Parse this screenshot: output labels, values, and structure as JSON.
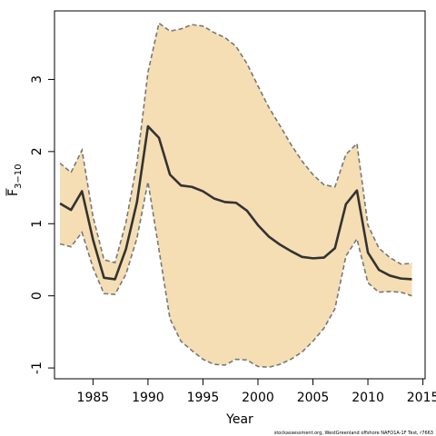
{
  "chart_data": {
    "type": "line",
    "title": "",
    "xlabel": "Year",
    "ylabel_main": "F",
    "ylabel_sub": "3−10",
    "xlim": [
      1981.5,
      2015.2
    ],
    "ylim": [
      -1.15,
      3.95
    ],
    "x_ticks": [
      1985,
      1990,
      1995,
      2000,
      2005,
      2010,
      2015
    ],
    "y_ticks": [
      -1,
      0,
      1,
      2,
      3
    ],
    "grid": false,
    "colors": {
      "band": "#f5deb3",
      "band_edge": "#777777",
      "line": "#333333"
    },
    "x": [
      1982,
      1983,
      1984,
      1985,
      1986,
      1987,
      1988,
      1989,
      1990,
      1991,
      1992,
      1993,
      1994,
      1995,
      1996,
      1997,
      1998,
      1999,
      2000,
      2001,
      2002,
      2003,
      2004,
      2005,
      2006,
      2007,
      2008,
      2009,
      2010,
      2011,
      2012,
      2013,
      2014
    ],
    "series": [
      {
        "role": "estimate",
        "values": [
          1.28,
          1.19,
          1.45,
          0.78,
          0.25,
          0.23,
          0.65,
          1.3,
          2.35,
          2.19,
          1.68,
          1.53,
          1.51,
          1.45,
          1.35,
          1.3,
          1.29,
          1.18,
          0.98,
          0.82,
          0.71,
          0.62,
          0.54,
          0.52,
          0.53,
          0.66,
          1.27,
          1.46,
          0.6,
          0.36,
          0.28,
          0.24,
          0.23
        ]
      },
      {
        "role": "upper",
        "values": [
          1.84,
          1.71,
          2.02,
          1.1,
          0.5,
          0.46,
          1.02,
          1.84,
          3.1,
          3.78,
          3.67,
          3.7,
          3.76,
          3.74,
          3.65,
          3.58,
          3.46,
          3.22,
          2.91,
          2.61,
          2.36,
          2.1,
          1.87,
          1.68,
          1.54,
          1.51,
          1.96,
          2.11,
          0.98,
          0.66,
          0.53,
          0.44,
          0.45
        ]
      },
      {
        "role": "lower",
        "values": [
          0.72,
          0.68,
          0.88,
          0.39,
          0.03,
          0.02,
          0.3,
          0.8,
          1.58,
          0.64,
          -0.32,
          -0.63,
          -0.76,
          -0.88,
          -0.95,
          -0.96,
          -0.88,
          -0.89,
          -0.98,
          -0.99,
          -0.95,
          -0.88,
          -0.78,
          -0.63,
          -0.45,
          -0.18,
          0.55,
          0.79,
          0.18,
          0.05,
          0.06,
          0.05,
          0.0
        ]
      }
    ]
  },
  "footnote": "stockassessment.org, WestGreenland offshore NAFO1A-1F Test, r7663"
}
